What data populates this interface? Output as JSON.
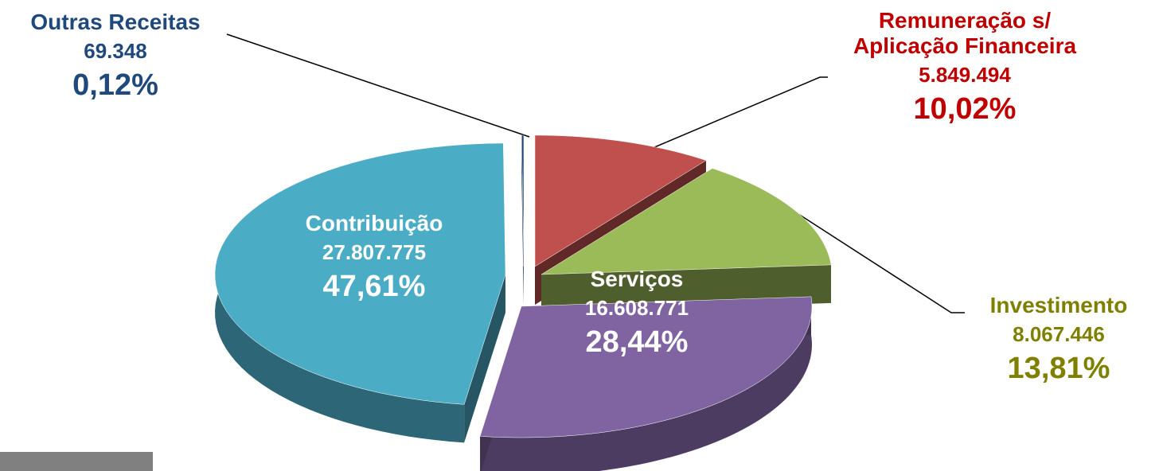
{
  "chart_data": {
    "type": "pie",
    "categories": [
      "Remuneração s/ Aplicação Financeira",
      "Investimento",
      "Serviços",
      "Contribuição",
      "Outras Receitas"
    ],
    "values": [
      5849494,
      8067446,
      16608771,
      27807775,
      69348
    ],
    "value_labels": [
      "5.849.494",
      "8.067.446",
      "16.608.771",
      "27.807.775",
      "69.348"
    ],
    "percentages": [
      10.02,
      13.81,
      28.44,
      47.61,
      0.12
    ],
    "percentage_labels": [
      "10,02%",
      "13,81%",
      "28,44%",
      "47,61%",
      "0,12%"
    ],
    "colors": [
      "#c0504d",
      "#9bbb59",
      "#8064a2",
      "#4bacc6",
      "#1f497d"
    ],
    "label_colors": [
      "#c00000",
      "#7f8000",
      "#ffffff",
      "#ffffff",
      "#1f497d"
    ]
  }
}
